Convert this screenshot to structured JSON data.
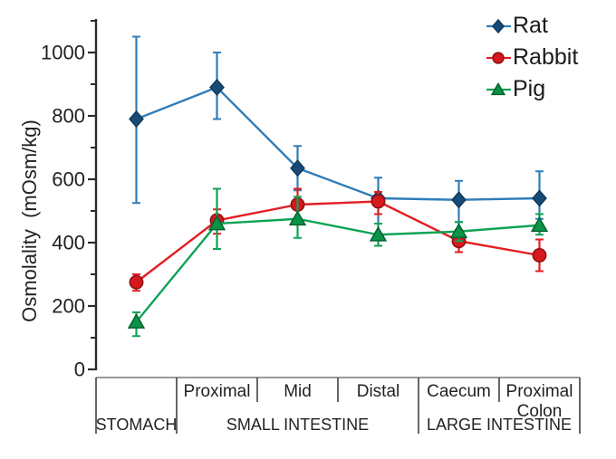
{
  "figure": {
    "background": "#ffffff",
    "text_color": "#231f20",
    "axis_color": "#2b2b2b",
    "table_line_color": "#97999c",
    "table_divider_color": "#55565a"
  },
  "y_axis": {
    "label": "Osmolality  (mOsm/kg)",
    "min": 0,
    "max": 1100,
    "major_tick_step": 200,
    "minor_tick_step": 100
  },
  "legend": {
    "items": [
      {
        "label": "Rat"
      },
      {
        "label": "Rabbit"
      },
      {
        "label": "Pig"
      }
    ]
  },
  "chart_data": {
    "type": "line",
    "title": "",
    "xlabel": "",
    "ylabel": "Osmolality  (mOsm/kg)",
    "ylim": [
      0,
      1100
    ],
    "yticks_labeled": [
      0,
      200,
      400,
      600,
      800,
      1000
    ],
    "yticks_minor": [
      100,
      300,
      500,
      700,
      900,
      1100
    ],
    "grid": false,
    "legend_position": "top-right",
    "error_bars": true,
    "categories": [
      "Stomach",
      "Proximal small intestine",
      "Mid small intestine",
      "Distal small intestine",
      "Caecum",
      "Proximal colon"
    ],
    "series": [
      {
        "name": "Rat",
        "marker": "diamond",
        "color": "#2f7db9",
        "marker_fill": "#174a77",
        "marker_edge": "#0f3a5f",
        "values": [
          790,
          890,
          635,
          540,
          535,
          540
        ],
        "err_low": [
          525,
          790,
          565,
          460,
          465,
          475
        ],
        "err_high": [
          1050,
          1000,
          705,
          605,
          595,
          625
        ]
      },
      {
        "name": "Rabbit",
        "marker": "circle",
        "color": "#e31e22",
        "marker_fill": "#d6191d",
        "marker_edge": "#8c1012",
        "values": [
          275,
          470,
          520,
          530,
          405,
          360
        ],
        "err_low": [
          248,
          428,
          470,
          490,
          370,
          310
        ],
        "err_high": [
          300,
          505,
          570,
          560,
          440,
          410
        ]
      },
      {
        "name": "Pig",
        "marker": "triangle",
        "color": "#0fa355",
        "marker_fill": "#089347",
        "marker_edge": "#04622f",
        "values": [
          150,
          460,
          475,
          425,
          435,
          455
        ],
        "err_low": [
          105,
          380,
          415,
          390,
          405,
          425
        ],
        "err_high": [
          180,
          570,
          545,
          460,
          465,
          490
        ]
      }
    ],
    "region_table": {
      "sub_regions": [
        "Proximal",
        "Mid",
        "Distal",
        "Caecum"
      ],
      "proximal_colon_line1": "Proximal",
      "proximal_colon_line2": "Colon",
      "groups": [
        "STOMACH",
        "SMALL INTESTINE",
        "LARGE INTESTINE"
      ]
    }
  }
}
